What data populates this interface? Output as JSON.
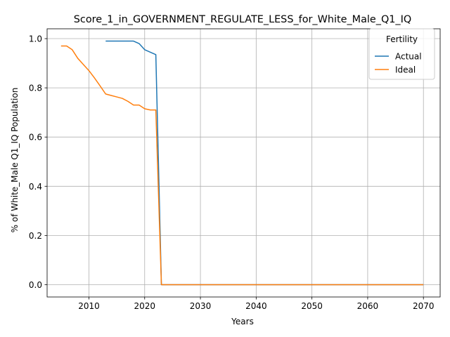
{
  "chart_data": {
    "type": "line",
    "title": "Score_1_in_GOVERNMENT_REGULATE_LESS_for_White_Male_Q1_IQ",
    "xlabel": "Years",
    "ylabel": "% of White_Male Q1_IQ Population",
    "xlim": [
      2002.5,
      2073
    ],
    "ylim": [
      -0.05,
      1.04
    ],
    "xticks": [
      2010,
      2020,
      2030,
      2040,
      2050,
      2060,
      2070
    ],
    "yticks": [
      0.0,
      0.2,
      0.4,
      0.6,
      0.8,
      1.0
    ],
    "xtick_labels": [
      "2010",
      "2020",
      "2030",
      "2040",
      "2050",
      "2060",
      "2070"
    ],
    "ytick_labels": [
      "0.0",
      "0.2",
      "0.4",
      "0.6",
      "0.8",
      "1.0"
    ],
    "grid": true,
    "legend": {
      "title": "Fertility",
      "position": "top-right"
    },
    "series": [
      {
        "name": "Actual",
        "color": "#1f77b4",
        "x": [
          2013,
          2014,
          2015,
          2016,
          2017,
          2018,
          2019,
          2020,
          2021,
          2022,
          2023,
          2024,
          2030,
          2040,
          2050,
          2060,
          2070
        ],
        "values": [
          0.99,
          0.99,
          0.99,
          0.99,
          0.99,
          0.99,
          0.98,
          0.955,
          0.945,
          0.935,
          0.0,
          0.0,
          0.0,
          0.0,
          0.0,
          0.0,
          0.0
        ]
      },
      {
        "name": "Ideal",
        "color": "#ff7f0e",
        "x": [
          2005,
          2006,
          2007,
          2008,
          2009,
          2010,
          2011,
          2012,
          2013,
          2014,
          2015,
          2016,
          2017,
          2018,
          2019,
          2020,
          2021,
          2022,
          2023,
          2024,
          2030,
          2040,
          2050,
          2060,
          2070
        ],
        "values": [
          0.97,
          0.97,
          0.955,
          0.92,
          0.895,
          0.87,
          0.84,
          0.808,
          0.775,
          0.769,
          0.763,
          0.757,
          0.745,
          0.73,
          0.73,
          0.715,
          0.71,
          0.71,
          0.0,
          0.0,
          0.0,
          0.0,
          0.0,
          0.0,
          0.0
        ]
      }
    ]
  }
}
